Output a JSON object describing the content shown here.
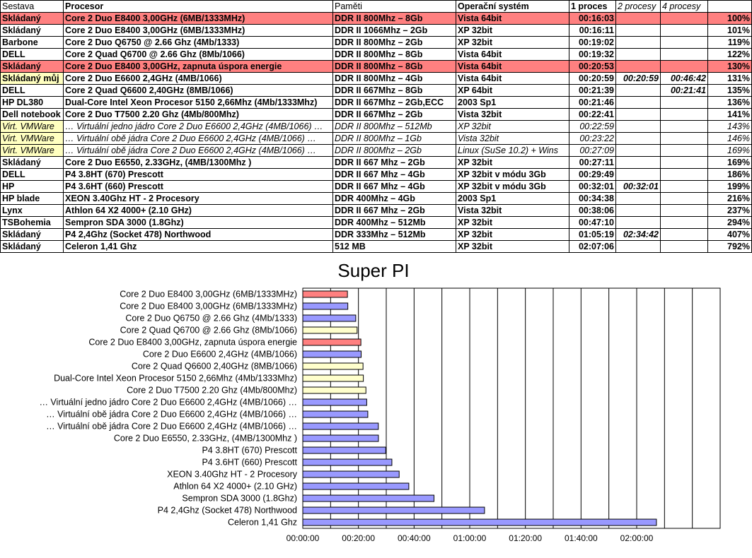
{
  "table": {
    "headers": [
      "Sestava",
      "Procesor",
      "Paměti",
      "Operační systém",
      "1 proces",
      "2 procesy",
      "4 procesy",
      ""
    ],
    "rows": [
      {
        "sestava": "Skládaný",
        "procesor": "Core 2 Duo E8400 3,00GHz (6MB/1333MHz)",
        "pameti": "DDR II 800Mhz – 8Gb",
        "os": "Vista 64bit",
        "p1": "00:16:03",
        "p2": "",
        "p4": "",
        "pct": "100%",
        "hl": true
      },
      {
        "sestava": "Skládaný",
        "procesor": "Core 2 Duo E8400 3,00GHz (6MB/1333MHz)",
        "pameti": "DDR II 1066Mhz – 2Gb",
        "os": "XP 32bit",
        "p1": "00:16:11",
        "p2": "",
        "p4": "",
        "pct": "101%"
      },
      {
        "sestava": "Barbone",
        "procesor": "Core 2 Duo Q6750 @ 2.66 Ghz (4Mb/1333)",
        "pameti": "DDR II 800Mhz  – 2Gb",
        "os": "XP 32bit",
        "p1": "00:19:02",
        "p2": "",
        "p4": "",
        "pct": "119%"
      },
      {
        "sestava": "DELL",
        "procesor": "Core 2 Quad Q6700 @ 2.66 Ghz (8Mb/1066)",
        "pameti": "DDR II 800Mhz  – 8Gb",
        "os": "Vista 64bit",
        "p1": "00:19:32",
        "p2": "",
        "p4": "",
        "pct": "122%"
      },
      {
        "sestava": "Skládaný",
        "procesor": "Core 2 Duo E8400 3,00GHz, zapnuta úspora energie",
        "pameti": "DDR II 800Mhz  – 8Gb",
        "os": "Vista 64bit",
        "p1": "00:20:53",
        "p2": "",
        "p4": "",
        "pct": "130%",
        "hl": true
      },
      {
        "sestava": "Skládaný můj",
        "procesor": "Core 2 Duo E6600 2,4GHz (4MB/1066)",
        "pameti": "DDR II 800Mhz  – 4Gb",
        "os": "Vista 64bit",
        "p1": "00:20:59",
        "p2": "00:20:59",
        "p4": "00:46:42",
        "pct": "131%",
        "yl": true
      },
      {
        "sestava": "DELL",
        "procesor": "Core 2 Quad Q6600 2,40GHz (8MB/1066)",
        "pameti": "DDR II 667Mhz  – 8Gb",
        "os": "XP 64bit",
        "p1": "00:21:39",
        "p2": "",
        "p4": "00:21:41",
        "pct": "135%"
      },
      {
        "sestava": "HP DL380",
        "procesor": "Dual-Core Intel Xeon Procesor 5150 2,66Mhz (4Mb/1333Mhz)",
        "pameti": "DDR II 667Mhz – 2Gb,ECC",
        "os": "2003 Sp1",
        "p1": "00:21:46",
        "p2": "",
        "p4": "",
        "pct": "136%"
      },
      {
        "sestava": "Dell notebook",
        "procesor": "Core 2 Duo T7500 2.20 Ghz (4Mb/800Mhz)",
        "pameti": "DDR II 667Mhz  – 2Gb",
        "os": "Vista 32bit",
        "p1": "00:22:41",
        "p2": "",
        "p4": "",
        "pct": "141%"
      },
      {
        "sestava": "Virt. VMWare",
        "procesor": "… Virtuální jedno jádro Core 2 Duo E6600 2,4GHz (4MB/1066) …",
        "pameti": "DDR II 800Mhz  – 512Mb",
        "os": "XP 32bit",
        "p1": "00:22:59",
        "p2": "",
        "p4": "",
        "pct": "143%",
        "vm": true
      },
      {
        "sestava": "Virt. VMWare",
        "procesor": "… Virtuální obě jádra Core 2 Duo E6600 2,4GHz (4MB/1066) …",
        "pameti": "DDR II 800Mhz  – 1Gb",
        "os": "Vista 32bit",
        "p1": "00:23:22",
        "p2": "",
        "p4": "",
        "pct": "146%",
        "vm": true
      },
      {
        "sestava": "Virt. VMWare",
        "procesor": "… Virtuální obě jádra Core 2 Duo E6600 2,4GHz (4MB/1066) …",
        "pameti": "DDR II 800Mhz  – 2Gb",
        "os": "Linux (SuSe 10.2) + Wins",
        "p1": "00:27:09",
        "p2": "",
        "p4": "",
        "pct": "169%",
        "vm": true
      },
      {
        "sestava": "Skládaný",
        "procesor": "Core 2 Duo E6550, 2.33GHz, (4MB/1300Mhz )",
        "pameti": "DDR II 667 Mhz  – 2Gb",
        "os": "XP 32bit",
        "p1": "00:27:11",
        "p2": "",
        "p4": "",
        "pct": "169%"
      },
      {
        "sestava": "DELL",
        "procesor": "P4 3.8HT (670) Prescott",
        "pameti": "DDR II 667 Mhz  – 4Gb",
        "os": "XP 32bit v módu 3Gb",
        "p1": "00:29:49",
        "p2": "",
        "p4": "",
        "pct": "186%"
      },
      {
        "sestava": "HP",
        "procesor": "P4 3.6HT (660) Prescott",
        "pameti": "DDR II 667 Mhz  – 4Gb",
        "os": "XP 32bit v módu 3Gb",
        "p1": "00:32:01",
        "p2": "00:32:01",
        "p4": "",
        "pct": "199%"
      },
      {
        "sestava": "HP blade",
        "procesor": "XEON 3.40Ghz HT - 2 Procesory",
        "pameti": "DDR 400Mhz – 4Gb",
        "os": "2003 Sp1",
        "p1": "00:34:38",
        "p2": "",
        "p4": "",
        "pct": "216%"
      },
      {
        "sestava": "Lynx",
        "procesor": "Athlon  64 X2 4000+ (2.10 GHz)",
        "pameti": "DDR II 667 Mhz  – 2Gb",
        "os": "Vista 32bit",
        "p1": "00:38:06",
        "p2": "",
        "p4": "",
        "pct": "237%"
      },
      {
        "sestava": "TSBohemia",
        "procesor": "Sempron SDA 3000 (1.8Ghz)",
        "pameti": "DDR 400Mhz – 512Mb",
        "os": "XP 32bit",
        "p1": "00:47:10",
        "p2": "",
        "p4": "",
        "pct": "294%"
      },
      {
        "sestava": "Skládaný",
        "procesor": "P4 2,4Ghz (Socket 478) Northwood",
        "pameti": "DDR 333Mhz – 512Mb",
        "os": "XP 32bit",
        "p1": "01:05:19",
        "p2": "02:34:42",
        "p4": "",
        "pct": "407%"
      },
      {
        "sestava": "Skládaný",
        "procesor": "Celeron 1,41 Ghz",
        "pameti": "512 MB",
        "os": "XP 32bit",
        "p1": "02:07:06",
        "p2": "",
        "p4": "",
        "pct": "792%"
      }
    ]
  },
  "colors": {
    "red": "#ff8080",
    "yellow": "#ffffcc",
    "blue": "#9999ff",
    "grid": "#000000"
  },
  "chart_data": {
    "type": "bar",
    "orientation": "horizontal",
    "title": "Super PI",
    "grid": true,
    "x_unit": "time (hh:mm:ss)",
    "xlim_seconds": [
      0,
      9000
    ],
    "x_ticks": [
      "00:00:00",
      "00:20:00",
      "00:40:00",
      "01:00:00",
      "01:20:00",
      "01:40:00",
      "02:00:00"
    ],
    "categories": [
      "Core 2 Duo E8400 3,00GHz (6MB/1333MHz)",
      "Core 2 Duo E8400 3,00GHz (6MB/1333MHz)",
      "Core 2 Duo Q6750 @ 2.66 Ghz (4Mb/1333)",
      "Core 2 Quad Q6700 @ 2.66 Ghz (8Mb/1066)",
      "Core 2 Duo E8400 3,00GHz, zapnuta úspora energie",
      "Core 2 Duo E6600 2,4GHz (4MB/1066)",
      "Core 2 Quad Q6600 2,40GHz (8MB/1066)",
      "Dual-Core Intel Xeon Procesor 5150 2,66Mhz (4Mb/1333Mhz)",
      "Core 2 Duo T7500 2.20 Ghz (4Mb/800Mhz)",
      "… Virtuální jedno jádro Core 2 Duo E6600 2,4GHz (4MB/1066) …",
      "… Virtuální obě jádra Core 2 Duo E6600 2,4GHz (4MB/1066) …",
      "… Virtuální obě jádra Core 2 Duo E6600 2,4GHz (4MB/1066) …",
      "Core 2 Duo E6550, 2.33GHz, (4MB/1300Mhz )",
      "P4 3.8HT (670) Prescott",
      "P4 3.6HT (660) Prescott",
      "XEON 3.40Ghz HT - 2 Procesory",
      "Athlon  64 X2 4000+ (2.10 GHz)",
      "Sempron SDA 3000 (1.8Ghz)",
      "P4 2,4Ghz (Socket 478) Northwood",
      "Celeron 1,41 Ghz"
    ],
    "values": [
      "00:16:03",
      "00:16:11",
      "00:19:02",
      "00:19:32",
      "00:20:53",
      "00:20:59",
      "00:21:39",
      "00:21:46",
      "00:22:41",
      "00:22:59",
      "00:23:22",
      "00:27:09",
      "00:27:11",
      "00:29:49",
      "00:32:01",
      "00:34:38",
      "00:38:06",
      "00:47:10",
      "01:05:19",
      "02:07:06"
    ],
    "bar_colors": [
      "red",
      "blue",
      "blue",
      "yellow",
      "red",
      "blue",
      "yellow",
      "yellow",
      "yellow",
      "blue",
      "blue",
      "blue",
      "blue",
      "blue",
      "blue",
      "blue",
      "blue",
      "blue",
      "blue",
      "blue"
    ]
  }
}
